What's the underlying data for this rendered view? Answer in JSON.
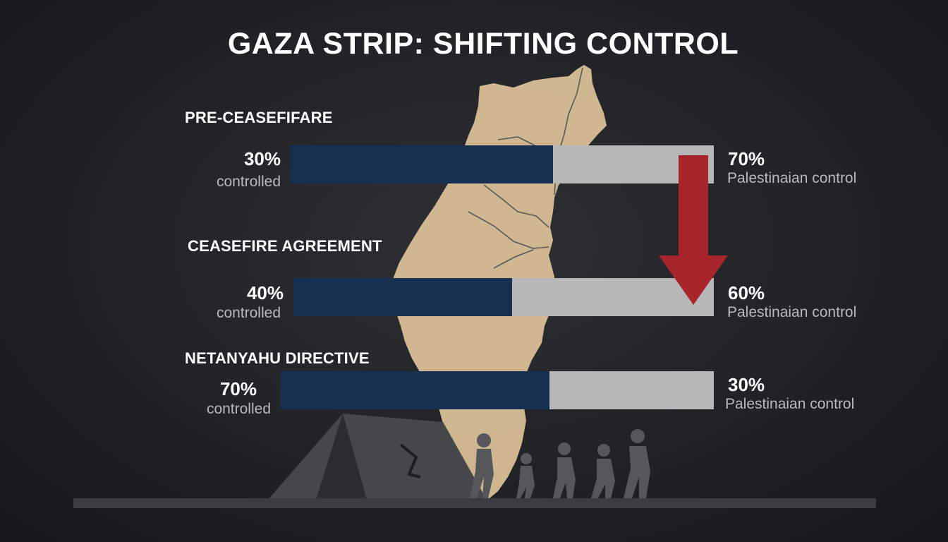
{
  "title": "GAZA STRIP: SHIFTING CONTROL",
  "colors": {
    "background": "#1f2124",
    "controlled_bar": "#173052",
    "palestinian_bar": "#b7b7b7",
    "map_fill": "#d9bf97",
    "arrow": "#a8262b",
    "silhouette": "#4a4c50"
  },
  "icons": [
    "map-silhouette",
    "down-arrow-icon",
    "tent-illustration",
    "walking-people-silhouette"
  ],
  "chart_data": {
    "type": "bar",
    "orientation": "horizontal",
    "stacked": true,
    "categories": [
      "PRE-CEASEFIFARE",
      "CEASEFIRE AGREEMENT",
      "NETANYAHU DIRECTIVE"
    ],
    "series": [
      {
        "name": "controlled",
        "values": [
          30,
          40,
          70
        ],
        "labels": [
          "30%",
          "40%",
          "70%"
        ]
      },
      {
        "name": "Palestinaian control",
        "values": [
          70,
          60,
          30
        ],
        "labels": [
          "70%",
          "60%",
          "30%"
        ]
      }
    ],
    "unit": "%",
    "xlim": [
      0,
      100
    ]
  },
  "rows": [
    {
      "label": "PRE-CEASEFIFARE",
      "left_pct": "30%",
      "left_sub": "controlled",
      "right_pct": "70%",
      "right_sub": "Palestinaian control"
    },
    {
      "label": "CEASEFIRE AGREEMENT",
      "left_pct": "40%",
      "left_sub": "controlled",
      "right_pct": "60%",
      "right_sub": "Palestinaian control"
    },
    {
      "label": "NETANYAHU DIRECTIVE",
      "left_pct": "70%",
      "left_sub": "controlled",
      "right_pct": "30%",
      "right_sub": "Palestinaian control"
    }
  ]
}
